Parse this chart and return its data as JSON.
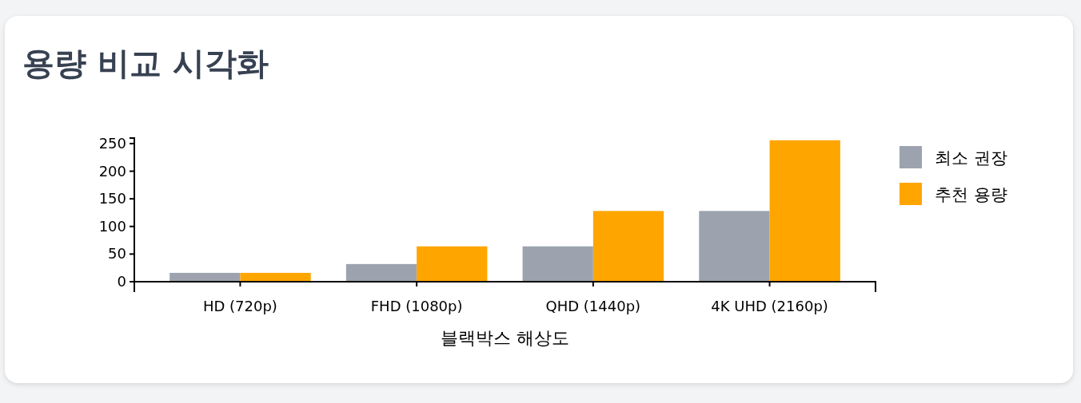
{
  "chart_data": {
    "type": "bar",
    "title": "용량 비교 시각화",
    "xlabel": "블랙박스 해상도",
    "categories": [
      "HD (720p)",
      "FHD (1080p)",
      "QHD (1440p)",
      "4K UHD (2160p)"
    ],
    "series": [
      {
        "name": "최소 권장",
        "color": "#9ca3af",
        "values": [
          16,
          32,
          64,
          128
        ]
      },
      {
        "name": "추천 용량",
        "color": "#ffa500",
        "values": [
          16,
          64,
          128,
          256
        ]
      }
    ],
    "ylim": [
      0,
      260
    ],
    "yticks": [
      0,
      50,
      100,
      150,
      200,
      250
    ],
    "grid": false,
    "legend": "right"
  }
}
